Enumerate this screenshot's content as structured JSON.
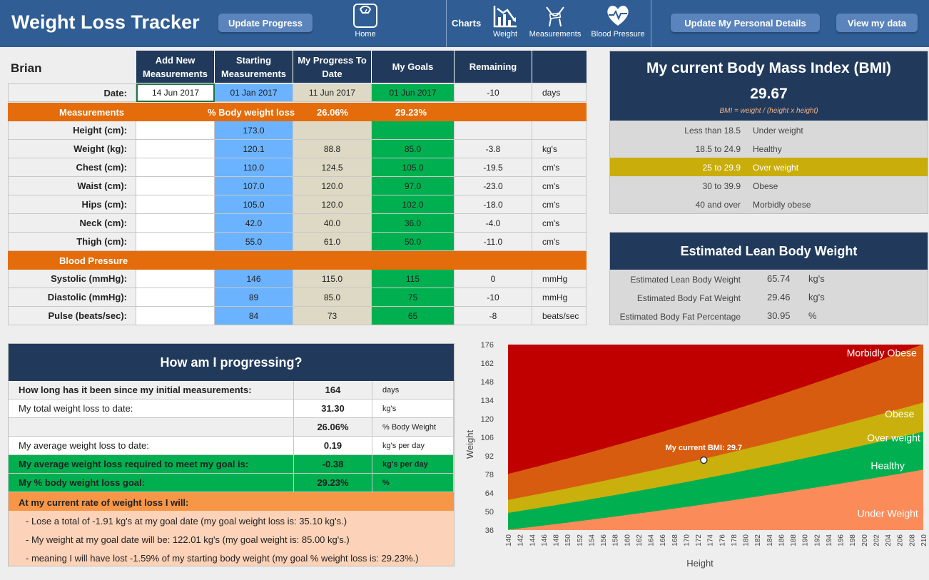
{
  "header": {
    "title": "Weight Loss Tracker",
    "update_progress": "Update Progress",
    "home_label": "Home",
    "charts_label": "Charts",
    "chart_weight": "Weight",
    "chart_measurements": "Measurements",
    "chart_bp": "Blood Pressure",
    "update_details": "Update My Personal Details",
    "view_data": "View my data"
  },
  "tracker": {
    "name": "Brian",
    "columns": [
      "Add New Measurements",
      "Starting Measurements",
      "My Progress To Date",
      "My Goals",
      "Remaining"
    ],
    "date_label": "Date:",
    "date_new": "14 Jun 2017",
    "date_start": "01 Jan 2017",
    "date_progress": "11 Jun 2017",
    "date_goal": "01 Jun 2017",
    "date_remaining": "-10",
    "date_unit": "days",
    "measurements_label": "Measurements",
    "pct_loss_label": "% Body weight loss",
    "pct_loss_progress": "26.06%",
    "pct_loss_goal": "29.23%",
    "rows": [
      {
        "label": "Height (cm):",
        "start": "173.0",
        "progress": "",
        "goal": "",
        "remaining": "",
        "unit": ""
      },
      {
        "label": "Weight (kg):",
        "start": "120.1",
        "progress": "88.8",
        "goal": "85.0",
        "remaining": "-3.8",
        "unit": "kg's"
      },
      {
        "label": "Chest (cm):",
        "start": "110.0",
        "progress": "124.5",
        "goal": "105.0",
        "remaining": "-19.5",
        "unit": "cm's"
      },
      {
        "label": "Waist (cm):",
        "start": "107.0",
        "progress": "120.0",
        "goal": "97.0",
        "remaining": "-23.0",
        "unit": "cm's"
      },
      {
        "label": "Hips (cm):",
        "start": "105.0",
        "progress": "120.0",
        "goal": "102.0",
        "remaining": "-18.0",
        "unit": "cm's"
      },
      {
        "label": "Neck (cm):",
        "start": "42.0",
        "progress": "40.0",
        "goal": "36.0",
        "remaining": "-4.0",
        "unit": "cm's"
      },
      {
        "label": "Thigh (cm):",
        "start": "55.0",
        "progress": "61.0",
        "goal": "50.0",
        "remaining": "-11.0",
        "unit": "cm's"
      }
    ],
    "bp_label": "Blood Pressure",
    "bp_rows": [
      {
        "label": "Systolic (mmHg):",
        "start": "146",
        "progress": "115.0",
        "goal": "115",
        "remaining": "0",
        "unit": "mmHg"
      },
      {
        "label": "Diastolic (mmHg):",
        "start": "89",
        "progress": "85.0",
        "goal": "75",
        "remaining": "-10",
        "unit": "mmHg"
      },
      {
        "label": "Pulse (beats/sec):",
        "start": "84",
        "progress": "73",
        "goal": "65",
        "remaining": "-8",
        "unit": "beats/sec"
      }
    ]
  },
  "bmi": {
    "title": "My current Body Mass Index (BMI)",
    "value": "29.67",
    "formula": "BMI = weight / (height x height)",
    "ranges": [
      {
        "range": "Less than 18.5",
        "category": "Under weight",
        "active": false
      },
      {
        "range": "18.5 to 24.9",
        "category": "Healthy",
        "active": false
      },
      {
        "range": "25 to 29.9",
        "category": "Over weight",
        "active": true
      },
      {
        "range": "30 to 39.9",
        "category": "Obese",
        "active": false
      },
      {
        "range": "40 and over",
        "category": "Morbidly obese",
        "active": false
      }
    ],
    "highlight_color": "#c9ad0b"
  },
  "lean": {
    "title": "Estimated Lean Body Weight",
    "rows": [
      {
        "label": "Estimated Lean Body Weight",
        "value": "65.74",
        "unit": "kg's"
      },
      {
        "label": "Estimated Body Fat Weight",
        "value": "29.46",
        "unit": "kg's"
      },
      {
        "label": "Estimated Body Fat Percentage",
        "value": "30.95",
        "unit": "%"
      }
    ]
  },
  "progress": {
    "title": "How am I progressing?",
    "rows": [
      {
        "label": "How long has it been since my initial measurements:",
        "value": "164",
        "unit": "days"
      },
      {
        "label": "My total weight loss to date:",
        "value": "31.30",
        "unit": "kg's"
      },
      {
        "label": "",
        "value": "26.06%",
        "unit": "% Body Weight"
      },
      {
        "label": "My average weight loss to date:",
        "value": "0.19",
        "unit": "kg's per day"
      },
      {
        "label": "My average weight loss required to meet my goal is:",
        "value": "-0.38",
        "unit": "kg's per day"
      },
      {
        "label": "My % body weight loss goal:",
        "value": "29.23%",
        "unit": "%"
      }
    ],
    "rate_header": "At my current rate of weight loss I will:",
    "rate_lines": [
      "- Lose a total of -1.91 kg's at my goal date (my goal weight loss is: 35.10 kg's.)",
      "- My weight at my goal date will be: 122.01 kg's (my goal weight is: 85.00 kg's.)",
      "- meaning I will have lost -1.59% of my starting body weight (my goal % weight loss is: 29.23%.)"
    ]
  },
  "chart_data": {
    "type": "area",
    "xlabel": "Height",
    "ylabel": "Weight",
    "x_ticks": [
      140,
      142,
      144,
      146,
      148,
      150,
      152,
      154,
      156,
      158,
      160,
      162,
      164,
      166,
      168,
      170,
      172,
      174,
      176,
      178,
      180,
      182,
      184,
      186,
      188,
      190,
      192,
      194,
      196,
      198,
      200,
      202,
      204,
      206,
      208,
      210
    ],
    "y_ticks": [
      36,
      50,
      64,
      78,
      92,
      106,
      120,
      134,
      148,
      162,
      176
    ],
    "xlim": [
      140,
      210
    ],
    "ylim": [
      36,
      176
    ],
    "bands": [
      {
        "name": "Under Weight",
        "bmi_max": 18.5,
        "color": "#fb8c5a"
      },
      {
        "name": "Healthy",
        "bmi_max": 25,
        "color": "#00b050"
      },
      {
        "name": "Over weight",
        "bmi_max": 30,
        "color": "#c9b00d"
      },
      {
        "name": "Obese",
        "bmi_max": 40,
        "color": "#d85c0f"
      },
      {
        "name": "Morbidly Obese",
        "bmi_max": 999,
        "color": "#c00000"
      }
    ],
    "point": {
      "x": 173,
      "y": 88.8,
      "label": "My current BMI: 29.7"
    }
  }
}
